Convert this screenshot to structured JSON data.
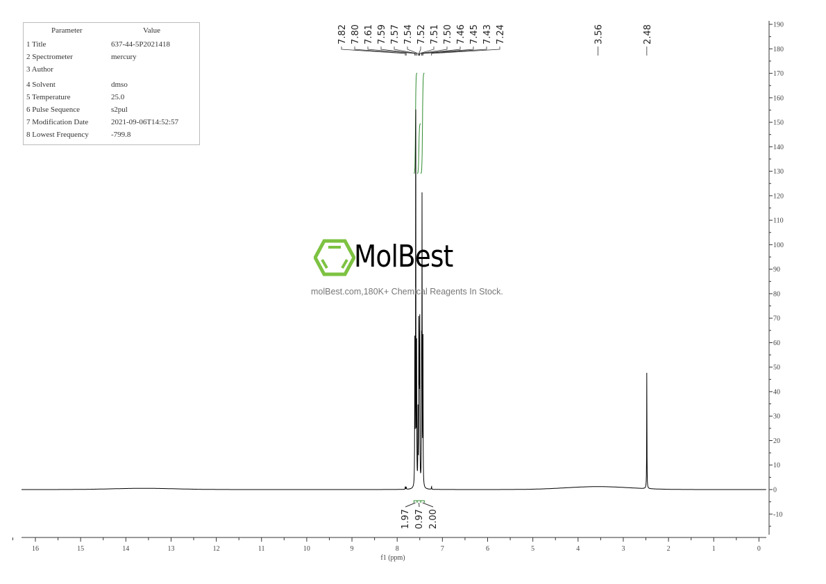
{
  "parameters": {
    "header": [
      "Parameter",
      "Value"
    ],
    "rows": [
      {
        "name": "1 Title",
        "value": "637-44-5P2021418"
      },
      {
        "name": "2 Spectrometer",
        "value": "mercury"
      },
      {
        "name": "3 Author",
        "value": ""
      },
      {
        "name": "4 Solvent",
        "value": "dmso"
      },
      {
        "name": "5 Temperature",
        "value": "25.0"
      },
      {
        "name": "6 Pulse Sequence",
        "value": "s2pul"
      },
      {
        "name": "7 Modification Date",
        "value": "2021-09-06T14:52:57"
      },
      {
        "name": "8 Lowest Frequency",
        "value": "-799.8"
      }
    ]
  },
  "watermark": {
    "brand": "MolBest",
    "tagline": "molBest.com,180K+ Chemical Reagents In Stock.",
    "logo_color": "#7dc242"
  },
  "chart_data": {
    "type": "line",
    "title": "",
    "xlabel": "f1 (ppm)",
    "ylabel": "",
    "xlim": [
      16.3,
      -0.2
    ],
    "ylim": [
      -19,
      192
    ],
    "x_reversed": true,
    "x_ticks": [
      16,
      15,
      14,
      13,
      12,
      11,
      10,
      9,
      8,
      7,
      6,
      5,
      4,
      3,
      2,
      1,
      0
    ],
    "y_ticks": [
      190,
      180,
      170,
      160,
      150,
      140,
      130,
      120,
      110,
      100,
      90,
      80,
      70,
      60,
      50,
      40,
      30,
      20,
      10,
      0,
      -10
    ],
    "grid": false,
    "line_color": "#000000",
    "integral_color": "#2e8b2e",
    "peaks": [
      {
        "ppm": 7.82,
        "intensity": 1.2
      },
      {
        "ppm": 7.8,
        "intensity": 1.0
      },
      {
        "ppm": 7.61,
        "intensity": 57
      },
      {
        "ppm": 7.59,
        "intensity": 174
      },
      {
        "ppm": 7.57,
        "intensity": 55
      },
      {
        "ppm": 7.54,
        "intensity": 30
      },
      {
        "ppm": 7.52,
        "intensity": 69
      },
      {
        "ppm": 7.51,
        "intensity": 45
      },
      {
        "ppm": 7.5,
        "intensity": 64
      },
      {
        "ppm": 7.46,
        "intensity": 50
      },
      {
        "ppm": 7.45,
        "intensity": 115
      },
      {
        "ppm": 7.43,
        "intensity": 64
      },
      {
        "ppm": 7.24,
        "intensity": 1.2
      },
      {
        "ppm": 2.48,
        "intensity": 48
      }
    ],
    "broad_features": [
      {
        "ppm": 13.6,
        "intensity": 0.5
      },
      {
        "ppm": 3.56,
        "intensity": 1.2
      }
    ],
    "peak_labels": [
      "7.82",
      "7.80",
      "7.61",
      "7.59",
      "7.57",
      "7.54",
      "7.52",
      "7.51",
      "7.50",
      "7.46",
      "7.45",
      "7.43",
      "7.24"
    ],
    "isolated_peak_labels": [
      "3.56",
      "2.48"
    ],
    "integrals": [
      {
        "from": 7.63,
        "to": 7.56,
        "value": "1.97"
      },
      {
        "from": 7.56,
        "to": 7.48,
        "value": "0.97"
      },
      {
        "from": 7.48,
        "to": 7.4,
        "value": "2.00"
      }
    ]
  }
}
